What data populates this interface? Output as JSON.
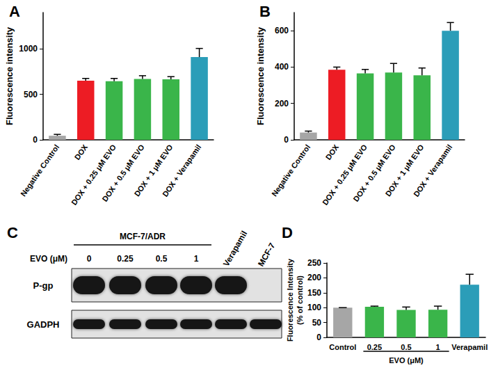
{
  "chart_data": [
    {
      "type": "bar",
      "title": "A",
      "y_label": "Fluorescence intensity",
      "categories": [
        "Negative Control",
        "DOX",
        "DOX + 0.25 μM EVO",
        "DOX + 0.5 μM EVO",
        "DOX + 1 μM EVO",
        "DOX + Verapamil"
      ],
      "values": [
        45,
        650,
        645,
        670,
        665,
        910
      ],
      "errors": [
        15,
        25,
        30,
        35,
        30,
        95
      ],
      "colors": [
        "#a6a6a6",
        "#ed1c24",
        "#3ab54a",
        "#3ab54a",
        "#3ab54a",
        "#2b9db8"
      ],
      "ylim": [
        0,
        1400
      ],
      "yticks": [
        0,
        500,
        1000
      ],
      "grid": false
    },
    {
      "type": "bar",
      "title": "B",
      "y_label": "Fluorescence intensity",
      "categories": [
        "Negative Control",
        "DOX",
        "DOX + 0.25 μM EVO",
        "DOX + 0.5 μM EVO",
        "DOX + 1 μM EVO",
        "DOX + Verapamil"
      ],
      "values": [
        40,
        385,
        365,
        370,
        355,
        600
      ],
      "errors": [
        8,
        15,
        22,
        50,
        40,
        45
      ],
      "colors": [
        "#a6a6a6",
        "#ed1c24",
        "#3ab54a",
        "#3ab54a",
        "#3ab54a",
        "#2b9db8"
      ],
      "ylim": [
        0,
        700
      ],
      "yticks": [
        0,
        200,
        400,
        600
      ],
      "grid": false
    },
    {
      "type": "bar",
      "title": "D",
      "y_label": "Fluorescence Intensity\n(% of control)",
      "categories": [
        "Control",
        "0.25",
        "0.5",
        "1",
        "Verapamil"
      ],
      "values": [
        100,
        103,
        92,
        93,
        177
      ],
      "errors": [
        0,
        2,
        10,
        12,
        35
      ],
      "colors": [
        "#a6a6a6",
        "#3ab54a",
        "#3ab54a",
        "#3ab54a",
        "#2b9db8"
      ],
      "annotations": [
        {
          "text": "EVO (μM)",
          "categories": [
            "0.25",
            "1"
          ]
        }
      ],
      "ylim": [
        0,
        250
      ],
      "yticks": [
        0,
        50,
        100,
        150,
        200,
        250
      ],
      "grid": false
    }
  ],
  "panel_c": {
    "title": "C",
    "group_label": "MCF-7/ADR",
    "group_lanes": [
      "0",
      "0.25",
      "0.5",
      "1"
    ],
    "row_label": "EVO (μM)",
    "lanes": [
      "0",
      "0.25",
      "0.5",
      "1",
      "Verapamil",
      "MCF-7"
    ],
    "rows": [
      {
        "label": "P-gp",
        "present": [
          true,
          true,
          true,
          true,
          true,
          false
        ]
      },
      {
        "label": "GADPH",
        "present": [
          true,
          true,
          true,
          true,
          true,
          true
        ]
      }
    ]
  }
}
